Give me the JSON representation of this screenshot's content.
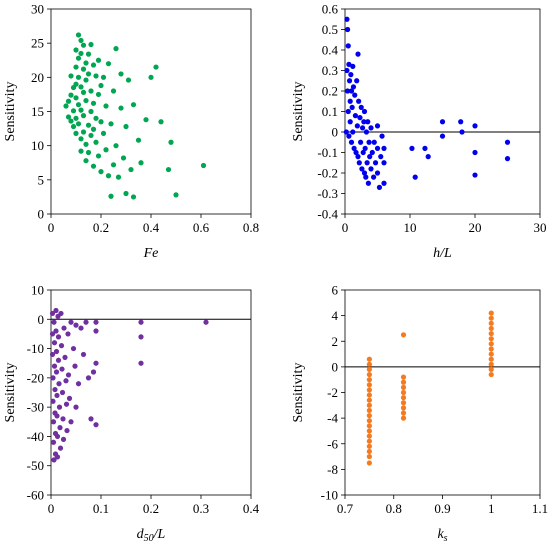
{
  "chart_data": [
    {
      "type": "scatter",
      "xlabel": "Fe",
      "ylabel": "Sensitivity",
      "xlim": [
        0,
        0.8
      ],
      "ylim": [
        0,
        30
      ],
      "xticks": [
        0,
        0.2,
        0.4,
        0.6,
        0.8
      ],
      "xtick_labels": [
        "0",
        "0.2",
        "0.4",
        "0.6",
        "0.8"
      ],
      "yticks": [
        0,
        5,
        10,
        15,
        20,
        25,
        30
      ],
      "ytick_labels": [
        "0",
        "5",
        "10",
        "15",
        "20",
        "25",
        "30"
      ],
      "zero_line": false,
      "color": "#00A651",
      "points": [
        [
          0.06,
          15.8
        ],
        [
          0.07,
          16.5
        ],
        [
          0.07,
          14.2
        ],
        [
          0.08,
          17.4
        ],
        [
          0.08,
          13.6
        ],
        [
          0.08,
          20.2
        ],
        [
          0.09,
          18.5
        ],
        [
          0.09,
          15.1
        ],
        [
          0.09,
          12.8
        ],
        [
          0.1,
          24.0
        ],
        [
          0.1,
          21.5
        ],
        [
          0.1,
          19.0
        ],
        [
          0.1,
          17.0
        ],
        [
          0.1,
          14.0
        ],
        [
          0.1,
          11.8
        ],
        [
          0.11,
          26.2
        ],
        [
          0.11,
          22.8
        ],
        [
          0.11,
          20.0
        ],
        [
          0.11,
          16.0
        ],
        [
          0.11,
          13.2
        ],
        [
          0.12,
          25.4
        ],
        [
          0.12,
          23.5
        ],
        [
          0.12,
          18.6
        ],
        [
          0.12,
          15.2
        ],
        [
          0.12,
          11.0
        ],
        [
          0.12,
          9.2
        ],
        [
          0.13,
          24.7
        ],
        [
          0.13,
          21.2
        ],
        [
          0.13,
          17.8
        ],
        [
          0.13,
          14.4
        ],
        [
          0.13,
          12.0
        ],
        [
          0.14,
          22.1
        ],
        [
          0.14,
          19.6
        ],
        [
          0.14,
          16.6
        ],
        [
          0.14,
          10.2
        ],
        [
          0.14,
          7.8
        ],
        [
          0.15,
          23.4
        ],
        [
          0.15,
          20.5
        ],
        [
          0.15,
          13.0
        ],
        [
          0.15,
          9.0
        ],
        [
          0.16,
          24.8
        ],
        [
          0.16,
          18.0
        ],
        [
          0.16,
          15.0
        ],
        [
          0.16,
          11.5
        ],
        [
          0.17,
          21.8
        ],
        [
          0.17,
          16.2
        ],
        [
          0.17,
          12.4
        ],
        [
          0.17,
          7.0
        ],
        [
          0.18,
          20.2
        ],
        [
          0.18,
          14.0
        ],
        [
          0.18,
          10.5
        ],
        [
          0.19,
          22.5
        ],
        [
          0.19,
          17.5
        ],
        [
          0.19,
          8.5
        ],
        [
          0.2,
          18.8
        ],
        [
          0.2,
          13.5
        ],
        [
          0.2,
          6.2
        ],
        [
          0.21,
          20.0
        ],
        [
          0.21,
          11.8
        ],
        [
          0.22,
          15.8
        ],
        [
          0.22,
          9.4
        ],
        [
          0.23,
          22.0
        ],
        [
          0.23,
          5.6
        ],
        [
          0.24,
          2.6
        ],
        [
          0.24,
          13.2
        ],
        [
          0.25,
          18.0
        ],
        [
          0.25,
          7.2
        ],
        [
          0.26,
          24.2
        ],
        [
          0.26,
          10.0
        ],
        [
          0.27,
          5.4
        ],
        [
          0.28,
          20.5
        ],
        [
          0.28,
          15.5
        ],
        [
          0.29,
          8.2
        ],
        [
          0.3,
          12.8
        ],
        [
          0.3,
          3.0
        ],
        [
          0.31,
          19.6
        ],
        [
          0.32,
          6.5
        ],
        [
          0.33,
          2.5
        ],
        [
          0.33,
          16.0
        ],
        [
          0.35,
          10.8
        ],
        [
          0.36,
          7.5
        ],
        [
          0.38,
          13.8
        ],
        [
          0.4,
          20.0
        ],
        [
          0.42,
          21.5
        ],
        [
          0.44,
          13.5
        ],
        [
          0.47,
          6.5
        ],
        [
          0.48,
          10.5
        ],
        [
          0.5,
          2.8
        ],
        [
          0.61,
          7.1
        ]
      ]
    },
    {
      "type": "scatter",
      "xlabel": "h/L",
      "ylabel": "Sensitivity",
      "xlim": [
        0,
        30
      ],
      "ylim": [
        -0.4,
        0.6
      ],
      "xticks": [
        0,
        10,
        20,
        30
      ],
      "xtick_labels": [
        "0",
        "10",
        "20",
        "30"
      ],
      "yticks": [
        -0.4,
        -0.3,
        -0.2,
        -0.1,
        0,
        0.1,
        0.2,
        0.3,
        0.4,
        0.5,
        0.6
      ],
      "ytick_labels": [
        "-0.4",
        "-0.3",
        "-0.2",
        "-0.1",
        "0",
        "0.1",
        "0.2",
        "0.3",
        "0.4",
        "0.5",
        "0.6"
      ],
      "zero_line": true,
      "color": "#0000EE",
      "points": [
        [
          0.2,
          0.0
        ],
        [
          0.3,
          0.55
        ],
        [
          0.3,
          0.3
        ],
        [
          0.4,
          0.5
        ],
        [
          0.4,
          0.2
        ],
        [
          0.5,
          0.42
        ],
        [
          0.5,
          0.1
        ],
        [
          0.6,
          0.33
        ],
        [
          0.6,
          -0.02
        ],
        [
          0.7,
          0.25
        ],
        [
          0.8,
          0.15
        ],
        [
          0.8,
          0.05
        ],
        [
          0.9,
          0.28
        ],
        [
          1.0,
          0.2
        ],
        [
          1.0,
          -0.05
        ],
        [
          1.1,
          0.12
        ],
        [
          1.2,
          0.32
        ],
        [
          1.2,
          0.0
        ],
        [
          1.3,
          0.22
        ],
        [
          1.4,
          -0.08
        ],
        [
          1.5,
          0.18
        ],
        [
          1.6,
          0.08
        ],
        [
          1.7,
          -0.1
        ],
        [
          1.8,
          0.25
        ],
        [
          1.9,
          0.03
        ],
        [
          2.0,
          -0.12
        ],
        [
          2.0,
          0.38
        ],
        [
          2.1,
          0.15
        ],
        [
          2.2,
          -0.15
        ],
        [
          2.3,
          0.07
        ],
        [
          2.4,
          -0.05
        ],
        [
          2.5,
          0.12
        ],
        [
          2.6,
          -0.18
        ],
        [
          2.7,
          0.02
        ],
        [
          2.8,
          -0.1
        ],
        [
          2.9,
          0.05
        ],
        [
          3.0,
          -0.2
        ],
        [
          3.0,
          0.1
        ],
        [
          3.1,
          -0.08
        ],
        [
          3.2,
          -0.22
        ],
        [
          3.3,
          0.0
        ],
        [
          3.4,
          -0.15
        ],
        [
          3.5,
          0.05
        ],
        [
          3.6,
          -0.25
        ],
        [
          3.7,
          -0.05
        ],
        [
          3.8,
          -0.12
        ],
        [
          4.0,
          -0.18
        ],
        [
          4.0,
          0.02
        ],
        [
          4.2,
          -0.1
        ],
        [
          4.4,
          -0.22
        ],
        [
          4.5,
          -0.05
        ],
        [
          4.7,
          -0.15
        ],
        [
          5.0,
          -0.2
        ],
        [
          5.0,
          0.03
        ],
        [
          5.0,
          -0.08
        ],
        [
          5.3,
          -0.27
        ],
        [
          5.5,
          -0.12
        ],
        [
          5.7,
          -0.02
        ],
        [
          6.0,
          -0.25
        ],
        [
          6.0,
          -0.15
        ],
        [
          6.0,
          -0.08
        ],
        [
          10.3,
          -0.08
        ],
        [
          10.8,
          -0.22
        ],
        [
          12.3,
          -0.08
        ],
        [
          12.8,
          -0.12
        ],
        [
          15.0,
          0.05
        ],
        [
          15.0,
          -0.02
        ],
        [
          17.8,
          0.05
        ],
        [
          18.0,
          0.0
        ],
        [
          20.0,
          0.03
        ],
        [
          20.0,
          -0.1
        ],
        [
          20.0,
          -0.21
        ],
        [
          25.0,
          -0.05
        ],
        [
          25.0,
          -0.13
        ]
      ]
    },
    {
      "type": "scatter",
      "xlabel": "d50/L",
      "ylabel": "Sensitivity",
      "xlim": [
        0,
        0.4
      ],
      "ylim": [
        -60,
        10
      ],
      "xticks": [
        0,
        0.1,
        0.2,
        0.3,
        0.4
      ],
      "xtick_labels": [
        "0",
        "0.1",
        "0.2",
        "0.3",
        "0.4"
      ],
      "yticks": [
        -60,
        -50,
        -40,
        -30,
        -20,
        -10,
        0,
        10
      ],
      "ytick_labels": [
        "-60",
        "-50",
        "-40",
        "-30",
        "-20",
        "-10",
        "0",
        "10"
      ],
      "zero_line": true,
      "color": "#7030A0",
      "points": [
        [
          0.003,
          2.0
        ],
        [
          0.003,
          -5.0
        ],
        [
          0.003,
          -12.0
        ],
        [
          0.004,
          -20.0
        ],
        [
          0.004,
          -28.0
        ],
        [
          0.005,
          -35.0
        ],
        [
          0.005,
          -42.0
        ],
        [
          0.006,
          -48.0
        ],
        [
          0.006,
          -1.0
        ],
        [
          0.007,
          -8.0
        ],
        [
          0.007,
          -16.0
        ],
        [
          0.008,
          -24.0
        ],
        [
          0.008,
          -32.0
        ],
        [
          0.009,
          -39.0
        ],
        [
          0.009,
          -46.0
        ],
        [
          0.01,
          3.0
        ],
        [
          0.01,
          -4.0
        ],
        [
          0.011,
          -11.0
        ],
        [
          0.011,
          -18.0
        ],
        [
          0.012,
          -26.0
        ],
        [
          0.012,
          -33.0
        ],
        [
          0.013,
          -40.0
        ],
        [
          0.013,
          -47.0
        ],
        [
          0.014,
          1.0
        ],
        [
          0.015,
          -6.0
        ],
        [
          0.015,
          -14.0
        ],
        [
          0.016,
          -22.0
        ],
        [
          0.017,
          -30.0
        ],
        [
          0.018,
          -37.0
        ],
        [
          0.019,
          -44.0
        ],
        [
          0.02,
          2.0
        ],
        [
          0.021,
          -9.0
        ],
        [
          0.022,
          -17.0
        ],
        [
          0.023,
          -25.0
        ],
        [
          0.024,
          -34.0
        ],
        [
          0.025,
          -41.0
        ],
        [
          0.026,
          -3.0
        ],
        [
          0.028,
          -13.0
        ],
        [
          0.03,
          -21.0
        ],
        [
          0.031,
          -29.0
        ],
        [
          0.032,
          -38.0
        ],
        [
          0.034,
          -5.0
        ],
        [
          0.035,
          -19.0
        ],
        [
          0.037,
          -27.0
        ],
        [
          0.04,
          -1.0
        ],
        [
          0.04,
          -35.0
        ],
        [
          0.045,
          -10.0
        ],
        [
          0.048,
          -16.0
        ],
        [
          0.05,
          -2.0
        ],
        [
          0.05,
          -30.0
        ],
        [
          0.055,
          -22.0
        ],
        [
          0.06,
          -3.0
        ],
        [
          0.065,
          -12.0
        ],
        [
          0.07,
          -1.0
        ],
        [
          0.075,
          -20.0
        ],
        [
          0.08,
          -34.0
        ],
        [
          0.085,
          -18.0
        ],
        [
          0.09,
          -1.0
        ],
        [
          0.09,
          -4.0
        ],
        [
          0.09,
          -15.0
        ],
        [
          0.09,
          -36.0
        ],
        [
          0.18,
          -1.0
        ],
        [
          0.18,
          -6.0
        ],
        [
          0.18,
          -15.0
        ],
        [
          0.31,
          -1.0
        ]
      ]
    },
    {
      "type": "scatter",
      "xlabel": "ks",
      "ylabel": "Sensitivity",
      "xlim": [
        0.7,
        1.1
      ],
      "ylim": [
        -10,
        6
      ],
      "xticks": [
        0.7,
        0.8,
        0.9,
        1.0,
        1.1
      ],
      "xtick_labels": [
        "0.7",
        "0.8",
        "0.9",
        "1",
        "1.1"
      ],
      "yticks": [
        -10,
        -8,
        -6,
        -4,
        -2,
        0,
        2,
        4,
        6
      ],
      "ytick_labels": [
        "-10",
        "-8",
        "-6",
        "-4",
        "-2",
        "0",
        "2",
        "4",
        "6"
      ],
      "zero_line": true,
      "color": "#F47B20",
      "points": [
        [
          0.75,
          0.6
        ],
        [
          0.75,
          0.2
        ],
        [
          0.75,
          -0.2
        ],
        [
          0.75,
          -0.6
        ],
        [
          0.75,
          -1.0
        ],
        [
          0.75,
          -1.4
        ],
        [
          0.75,
          -1.8
        ],
        [
          0.75,
          -2.2
        ],
        [
          0.75,
          -2.6
        ],
        [
          0.75,
          -3.0
        ],
        [
          0.75,
          -3.4
        ],
        [
          0.75,
          -3.8
        ],
        [
          0.75,
          -4.2
        ],
        [
          0.75,
          -4.6
        ],
        [
          0.75,
          -5.0
        ],
        [
          0.75,
          -5.4
        ],
        [
          0.75,
          -5.8
        ],
        [
          0.75,
          -6.2
        ],
        [
          0.75,
          -6.6
        ],
        [
          0.75,
          -7.0
        ],
        [
          0.75,
          -7.5
        ],
        [
          0.82,
          2.5
        ],
        [
          0.82,
          -0.8
        ],
        [
          0.82,
          -1.2
        ],
        [
          0.82,
          -1.6
        ],
        [
          0.82,
          -2.0
        ],
        [
          0.82,
          -2.4
        ],
        [
          0.82,
          -2.8
        ],
        [
          0.82,
          -3.2
        ],
        [
          0.82,
          -3.6
        ],
        [
          0.82,
          -4.0
        ],
        [
          1.0,
          4.2
        ],
        [
          1.0,
          3.8
        ],
        [
          1.0,
          3.4
        ],
        [
          1.0,
          3.0
        ],
        [
          1.0,
          2.6
        ],
        [
          1.0,
          2.2
        ],
        [
          1.0,
          1.8
        ],
        [
          1.0,
          1.4
        ],
        [
          1.0,
          1.0
        ],
        [
          1.0,
          0.6
        ],
        [
          1.0,
          0.2
        ],
        [
          1.0,
          -0.2
        ],
        [
          1.0,
          -0.6
        ]
      ]
    }
  ]
}
